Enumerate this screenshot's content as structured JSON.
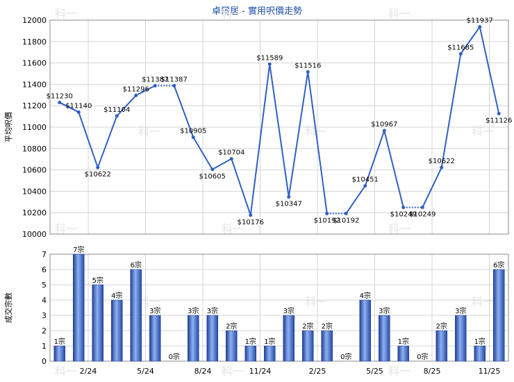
{
  "title": "卓爾居 - 實用呎價走勢",
  "colors": {
    "line": "#2f5fc4",
    "bar": "#3a66c8",
    "title": "#1f4fa8",
    "grid": "#d4d4d4"
  },
  "chart_data": [
    {
      "type": "line",
      "ylabel": "平均呎價",
      "ylim": [
        10000,
        12000
      ],
      "yticks": [
        10000,
        10200,
        10400,
        10600,
        10800,
        11000,
        11200,
        11400,
        11600,
        11800,
        12000
      ],
      "x_tick_labels": [
        "2/24",
        "5/24",
        "8/24",
        "11/24",
        "2/25",
        "5/25",
        "8/25",
        "11/25"
      ],
      "x_tick_positions": [
        2,
        5,
        8,
        11,
        14,
        17,
        20,
        23
      ],
      "points": [
        {
          "x": 0,
          "y": 11230,
          "label": "$11230"
        },
        {
          "x": 1,
          "y": 11140,
          "label": "$11140"
        },
        {
          "x": 2,
          "y": 10622,
          "label": "$10622"
        },
        {
          "x": 3,
          "y": 11104,
          "label": "$11104"
        },
        {
          "x": 4,
          "y": 11296,
          "label": "$11296"
        },
        {
          "x": 5,
          "y": 11387,
          "label": "$11387"
        },
        {
          "x": 6,
          "y": 11387,
          "label": "$11387"
        },
        {
          "x": 7,
          "y": 10905,
          "label": "$10905"
        },
        {
          "x": 8,
          "y": 10605,
          "label": "$10605"
        },
        {
          "x": 9,
          "y": 10704,
          "label": "$10704"
        },
        {
          "x": 10,
          "y": 10176,
          "label": "$10176"
        },
        {
          "x": 11,
          "y": 11589,
          "label": "$11589"
        },
        {
          "x": 12,
          "y": 10347,
          "label": "$10347"
        },
        {
          "x": 13,
          "y": 11516,
          "label": "$11516"
        },
        {
          "x": 14,
          "y": 10192,
          "label": "$10192"
        },
        {
          "x": 15,
          "y": 10192,
          "label": "$10192"
        },
        {
          "x": 16,
          "y": 10451,
          "label": "$10451"
        },
        {
          "x": 17,
          "y": 10967,
          "label": "$10967"
        },
        {
          "x": 18,
          "y": 10249,
          "label": "$10249"
        },
        {
          "x": 19,
          "y": 10249,
          "label": "$10249"
        },
        {
          "x": 20,
          "y": 10622,
          "label": "$10622"
        },
        {
          "x": 21,
          "y": 11685,
          "label": "$11685"
        },
        {
          "x": 22,
          "y": 11937,
          "label": "$11937"
        },
        {
          "x": 23,
          "y": 11126,
          "label": "$11126"
        }
      ],
      "dotted_segments": [
        [
          5,
          6
        ],
        [
          14,
          15
        ],
        [
          18,
          19
        ]
      ]
    },
    {
      "type": "bar",
      "ylabel": "成交宗數",
      "ylim": [
        0,
        7
      ],
      "yticks": [
        0,
        1,
        2,
        3,
        4,
        5,
        6,
        7
      ],
      "x_tick_labels": [
        "2/24",
        "5/24",
        "8/24",
        "11/24",
        "2/25",
        "5/25",
        "8/25",
        "11/25"
      ],
      "x_tick_positions": [
        2,
        5,
        8,
        11,
        14,
        17,
        20,
        23
      ],
      "values": [
        1,
        7,
        5,
        4,
        6,
        3,
        0,
        3,
        3,
        2,
        1,
        1,
        3,
        2,
        2,
        0,
        4,
        3,
        1,
        0,
        2,
        3,
        1,
        6
      ],
      "labels": [
        "1宗",
        "7宗",
        "5宗",
        "4宗",
        "6宗",
        "3宗",
        "0宗",
        "3宗",
        "3宗",
        "2宗",
        "1宗",
        "1宗",
        "3宗",
        "2宗",
        "2宗",
        "0宗",
        "4宗",
        "3宗",
        "1宗",
        "0宗",
        "2宗",
        "3宗",
        "1宗",
        "6宗"
      ]
    }
  ]
}
